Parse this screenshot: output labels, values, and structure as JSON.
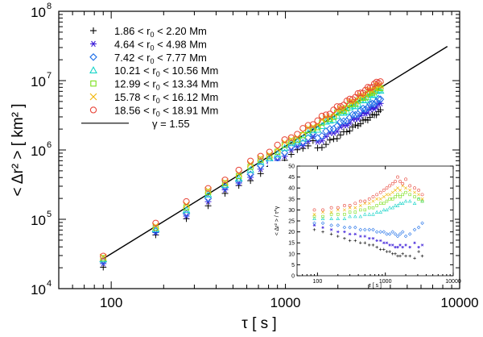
{
  "chart_data": {
    "type": "scatter",
    "main": {
      "xlabel": "τ  [ s ]",
      "ylabel": "< Δr² > [ km² ]",
      "xscale": "log",
      "yscale": "log",
      "xlim": [
        50,
        10000
      ],
      "ylim": [
        10000,
        100000000
      ],
      "x_ticks": [
        {
          "value": 100,
          "label": "100"
        },
        {
          "value": 1000,
          "label": "1000"
        },
        {
          "value": 10000,
          "label": "10000"
        }
      ],
      "y_ticks": [
        {
          "value": 10000,
          "base": "10",
          "exp": "4"
        },
        {
          "value": 100000,
          "base": "10",
          "exp": "5"
        },
        {
          "value": 1000000,
          "base": "10",
          "exp": "6"
        },
        {
          "value": 10000000,
          "base": "10",
          "exp": "7"
        },
        {
          "value": 100000000,
          "base": "10",
          "exp": "8"
        }
      ],
      "legend_position": "top-left",
      "fit": {
        "label": "γ = 1.55",
        "gamma": 1.55,
        "x_range": [
          90,
          8500
        ],
        "y_at_x0": 27000,
        "color": "#000000"
      },
      "series": [
        {
          "name": "1.86 < r0 < 2.20 Mm",
          "label_lead": "1.86 < r",
          "label_sub": "0",
          "label_tail": " < 2.20 Mm",
          "marker": "plus",
          "color": "#000000",
          "coef": 20000,
          "gamma": 1.51,
          "drop_after": 1500,
          "drop_factor": 0.72
        },
        {
          "name": "4.64 < r0 < 4.98 Mm",
          "label_lead": "4.64 < r",
          "label_sub": "0",
          "label_tail": " < 4.98 Mm",
          "marker": "asterisk",
          "color": "#3a1bd8",
          "coef": 22000,
          "gamma": 1.52,
          "drop_after": 1500,
          "drop_factor": 0.8
        },
        {
          "name": "7.42 < r0 < 7.77 Mm",
          "label_lead": "7.42 < r",
          "label_sub": "0",
          "label_tail": " < 7.77 Mm",
          "marker": "diamond",
          "color": "#1e6fe8",
          "coef": 23500,
          "gamma": 1.53,
          "drop_after": 1500,
          "drop_factor": 0.85
        },
        {
          "name": "10.21 < r0 < 10.56 Mm",
          "label_lead": "10.21 < r",
          "label_sub": "0",
          "label_tail": " < 10.56 Mm",
          "marker": "triangle",
          "color": "#17d4c8",
          "coef": 25500,
          "gamma": 1.55,
          "drop_after": 0,
          "drop_factor": 1
        },
        {
          "name": "12.99 < r0 < 13.34 Mm",
          "label_lead": "12.99 < r",
          "label_sub": "0",
          "label_tail": " < 13.34 Mm",
          "marker": "square",
          "color": "#7adf1a",
          "coef": 27000,
          "gamma": 1.56,
          "drop_after": 0,
          "drop_factor": 1
        },
        {
          "name": "15.78 < r0 < 16.12 Mm",
          "label_lead": "15.78 < r",
          "label_sub": "0",
          "label_tail": " < 16.12 Mm",
          "marker": "cross",
          "color": "#f0b400",
          "coef": 28500,
          "gamma": 1.57,
          "drop_after": 0,
          "drop_factor": 1
        },
        {
          "name": "18.56 < r0 < 18.91 Mm",
          "label_lead": "18.56 < r",
          "label_sub": "0",
          "label_tail": " < 18.91 Mm",
          "marker": "circle",
          "color": "#e8463a",
          "coef": 30500,
          "gamma": 1.58,
          "drop_after": 0,
          "drop_factor": 1
        }
      ],
      "x_samples": [
        90,
        180,
        270,
        360,
        450,
        540,
        630,
        720,
        810,
        900,
        990,
        1080,
        1170,
        1260,
        1350,
        1440,
        1530,
        1620,
        1710,
        1800,
        1890,
        1980,
        2070,
        2160,
        2250,
        2340,
        2430,
        2520,
        2610,
        2700,
        2790,
        2880,
        2970,
        3060,
        3150,
        3240,
        3330,
        3420,
        3510
      ]
    },
    "inset": {
      "xlabel": "τ [ s ]",
      "ylabel": "< Δr² > / τ^γ",
      "xscale": "log",
      "xlim": [
        50,
        10000
      ],
      "ylim": [
        0,
        50
      ],
      "x_ticks": [
        {
          "value": 100,
          "label": "100"
        },
        {
          "value": 1000,
          "label": "1000"
        },
        {
          "value": 10000,
          "label": "10000"
        }
      ],
      "y_ticks": [
        0,
        5,
        10,
        15,
        20,
        25,
        30,
        35,
        40,
        45,
        50
      ],
      "series": [
        {
          "name": "1.86 < r0 < 2.20 Mm",
          "values": [
            21,
            20,
            19,
            18,
            17,
            16,
            16,
            15,
            15,
            14,
            14,
            13,
            12,
            12,
            11,
            11,
            10,
            10,
            9,
            9,
            10,
            9,
            9,
            8,
            11,
            9
          ]
        },
        {
          "name": "4.64 < r0 < 4.98 Mm",
          "values": [
            23,
            22,
            21,
            20,
            20,
            19,
            19,
            18,
            18,
            17,
            17,
            16,
            16,
            15,
            15,
            14,
            14,
            13,
            13,
            14,
            13,
            14,
            13,
            15,
            13,
            14
          ]
        },
        {
          "name": "7.42 < r0 < 7.77 Mm",
          "values": [
            24,
            24,
            23,
            23,
            22,
            22,
            22,
            21,
            21,
            21,
            21,
            20,
            20,
            20,
            19,
            19,
            20,
            19,
            18,
            19,
            20,
            18,
            19,
            21,
            22,
            24
          ]
        },
        {
          "name": "10.21 < r0 < 10.56 Mm",
          "values": [
            26,
            26,
            26,
            26,
            26,
            27,
            27,
            27,
            28,
            28,
            28,
            29,
            29,
            30,
            30,
            31,
            31,
            32,
            32,
            33,
            33,
            34,
            34,
            33,
            35,
            34
          ]
        },
        {
          "name": "12.99 < r0 < 13.34 Mm",
          "values": [
            27,
            27,
            28,
            28,
            28,
            29,
            29,
            30,
            30,
            31,
            31,
            32,
            33,
            33,
            34,
            35,
            35,
            36,
            37,
            36,
            37,
            38,
            37,
            36,
            35,
            34
          ]
        },
        {
          "name": "15.78 < r0 < 16.12 Mm",
          "values": [
            28,
            29,
            29,
            30,
            30,
            31,
            31,
            32,
            33,
            33,
            34,
            35,
            35,
            36,
            37,
            37,
            38,
            39,
            40,
            39,
            41,
            40,
            39,
            38,
            37,
            35
          ]
        },
        {
          "name": "18.56 < r0 < 18.91 Mm",
          "values": [
            30,
            30,
            31,
            31,
            32,
            32,
            33,
            34,
            34,
            35,
            36,
            37,
            38,
            39,
            40,
            41,
            42,
            43,
            45,
            43,
            42,
            44,
            41,
            40,
            39,
            37
          ]
        }
      ],
      "x_samples": [
        90,
        120,
        160,
        200,
        250,
        300,
        360,
        430,
        500,
        580,
        660,
        750,
        850,
        950,
        1050,
        1160,
        1280,
        1400,
        1520,
        1650,
        1800,
        2000,
        2300,
        2700,
        3100,
        3500
      ]
    }
  }
}
